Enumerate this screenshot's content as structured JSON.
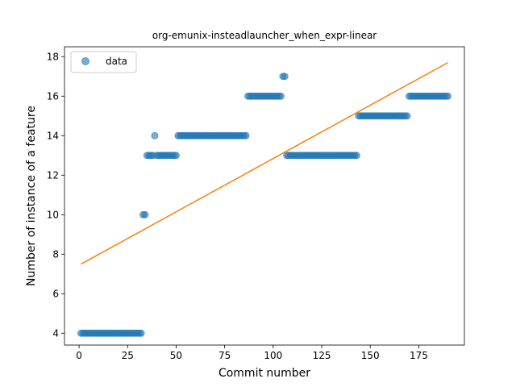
{
  "chart_data": {
    "type": "scatter",
    "title": "org-emunix-insteadlauncher_when_expr-linear",
    "xlabel": "Commit number",
    "ylabel": "Number of instance of a feature",
    "xlim": [
      -7.5,
      198.5
    ],
    "ylim": [
      3.4,
      18.5
    ],
    "xticks": [
      0,
      25,
      50,
      75,
      100,
      125,
      150,
      175
    ],
    "yticks": [
      4,
      6,
      8,
      10,
      12,
      14,
      16,
      18
    ],
    "legend": {
      "placement": "top-left",
      "entries": [
        "data"
      ]
    },
    "colors": {
      "data": "#1f77b4",
      "fit": "#ff7f0e"
    },
    "series": [
      {
        "name": "data",
        "kind": "scatter",
        "segments": [
          {
            "x_start": 1,
            "x_end": 32,
            "y": 4
          },
          {
            "x_start": 33,
            "x_end": 34,
            "y": 10
          },
          {
            "x_start": 35,
            "x_end": 38,
            "y": 13
          },
          {
            "x_start": 39,
            "x_end": 39,
            "y": 14
          },
          {
            "x_start": 40,
            "x_end": 50,
            "y": 13
          },
          {
            "x_start": 51,
            "x_end": 86,
            "y": 14
          },
          {
            "x_start": 87,
            "x_end": 104,
            "y": 16
          },
          {
            "x_start": 105,
            "x_end": 106,
            "y": 17
          },
          {
            "x_start": 107,
            "x_end": 143,
            "y": 13
          },
          {
            "x_start": 144,
            "x_end": 169,
            "y": 15
          },
          {
            "x_start": 170,
            "x_end": 190,
            "y": 16
          }
        ]
      },
      {
        "kind": "line",
        "x": [
          1,
          190
        ],
        "y": [
          7.5,
          17.7
        ]
      }
    ]
  }
}
